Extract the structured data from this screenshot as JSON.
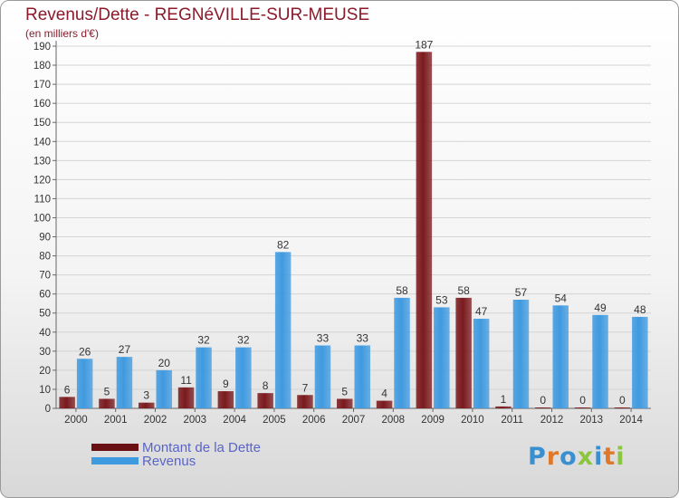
{
  "title": "Revenus/Dette - REGNéVILLE-SUR-MEUSE",
  "subtitle": "(en milliers d'€)",
  "chart_data": {
    "type": "bar",
    "categories": [
      "2000",
      "2001",
      "2002",
      "2003",
      "2004",
      "2005",
      "2006",
      "2007",
      "2008",
      "2009",
      "2010",
      "2011",
      "2012",
      "2013",
      "2014"
    ],
    "series": [
      {
        "name": "Montant de la Dette",
        "color": "#7a1a1e",
        "values": [
          6,
          5,
          3,
          11,
          9,
          8,
          7,
          5,
          4,
          187,
          58,
          1,
          0,
          0,
          0
        ]
      },
      {
        "name": "Revenus",
        "color": "#3f9ae0",
        "values": [
          26,
          27,
          20,
          32,
          32,
          82,
          33,
          33,
          58,
          53,
          47,
          57,
          54,
          49,
          48
        ]
      }
    ],
    "ylim": [
      0,
      190
    ],
    "yticks": [
      0,
      10,
      20,
      30,
      40,
      50,
      60,
      70,
      80,
      90,
      100,
      110,
      120,
      130,
      140,
      150,
      160,
      170,
      180,
      190
    ],
    "grid": true,
    "legend_position": "bottom-left"
  },
  "legend": {
    "items": [
      {
        "label": "Montant de la Dette",
        "color": "#6a0f14"
      },
      {
        "label": "Revenus",
        "color": "#3f9ae0"
      }
    ]
  },
  "logo": {
    "text": "Proxiti",
    "letter_colors": [
      "#3a8fd0",
      "#e0782a",
      "#3a8fd0",
      "#8cc63f",
      "#3a8fd0",
      "#e0782a",
      "#8cc63f"
    ]
  }
}
